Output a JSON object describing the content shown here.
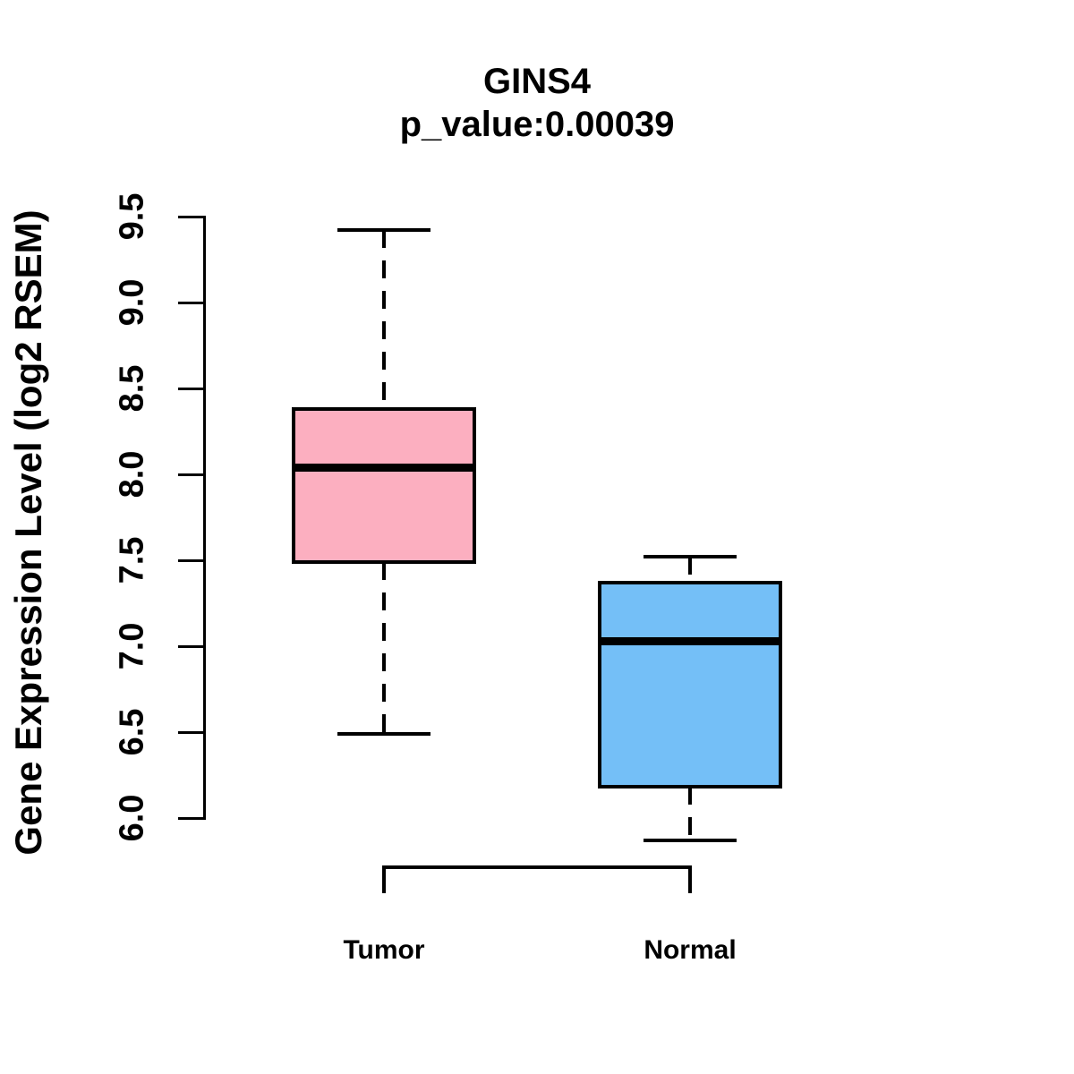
{
  "header": {
    "title": "GINS4",
    "subtitle": "p_value:0.00039"
  },
  "chart_data": {
    "type": "boxplot",
    "title": "GINS4",
    "subtitle": "p_value:0.00039",
    "xlabel": "",
    "ylabel": "Gene Expression Level (log2 RSEM)",
    "categories": [
      "Tumor",
      "Normal"
    ],
    "series": [
      {
        "name": "Tumor",
        "color": "#FCAFC0",
        "whisker_low": 6.49,
        "q1": 7.49,
        "median": 8.04,
        "q3": 8.38,
        "whisker_high": 9.42
      },
      {
        "name": "Normal",
        "color": "#74BFF7",
        "whisker_low": 5.87,
        "q1": 6.18,
        "median": 7.03,
        "q3": 7.37,
        "whisker_high": 7.52
      }
    ],
    "ylim": [
      6.0,
      9.5
    ],
    "ytick_step": 0.5,
    "ytick_labels": [
      "6.0",
      "6.5",
      "7.0",
      "7.5",
      "8.0",
      "8.5",
      "9.0",
      "9.5"
    ],
    "grid": false,
    "legend": "none",
    "box_border_color": "#000000",
    "median_color": "#000000",
    "axis_color": "#000000",
    "whisker_style": "dashed",
    "background_color": "#FFFFFF"
  }
}
